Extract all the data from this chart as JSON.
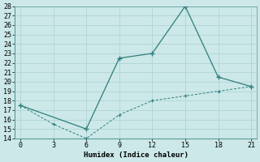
{
  "xlabel": "Humidex (Indice chaleur)",
  "ylabel": "",
  "background_color": "#cce8e8",
  "grid_color": "#e8f4f4",
  "line_color": "#2e7d7d",
  "solid_x": [
    0,
    6,
    9,
    12,
    15,
    18,
    21
  ],
  "solid_y": [
    17.5,
    15.0,
    22.5,
    23.0,
    28.0,
    20.5,
    19.5
  ],
  "dashed_x": [
    0,
    3,
    6,
    9,
    12,
    15,
    18,
    21
  ],
  "dashed_y": [
    17.5,
    15.5,
    14.0,
    16.5,
    18.0,
    18.5,
    19.0,
    19.5
  ],
  "xlim": [
    -0.5,
    21.5
  ],
  "ylim": [
    14,
    28
  ],
  "xticks": [
    0,
    3,
    6,
    9,
    12,
    15,
    18,
    21
  ],
  "yticks": [
    14,
    15,
    16,
    17,
    18,
    19,
    20,
    21,
    22,
    23,
    24,
    25,
    26,
    27,
    28
  ],
  "marker": "+"
}
